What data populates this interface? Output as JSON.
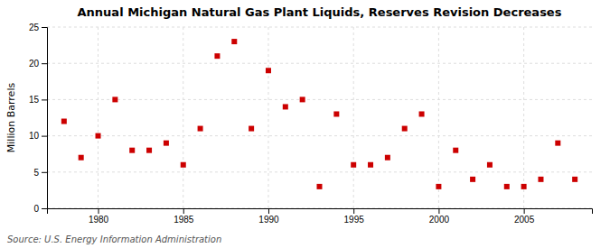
{
  "chart_data": {
    "type": "scatter",
    "title": "Annual Michigan Natural Gas Plant Liquids, Reserves Revision Decreases",
    "ylabel": "Million Barrels",
    "annotations": [
      "Source: U.S. Energy Information Administration"
    ],
    "x": [
      1978,
      1979,
      1980,
      1981,
      1982,
      1983,
      1984,
      1985,
      1986,
      1987,
      1988,
      1989,
      1990,
      1991,
      1992,
      1993,
      1994,
      1995,
      1996,
      1997,
      1998,
      1999,
      2000,
      2001,
      2002,
      2003,
      2004,
      2005,
      2006,
      2007,
      2008
    ],
    "values": [
      12,
      7,
      10,
      15,
      8,
      8,
      9,
      6,
      11,
      21,
      23,
      11,
      19,
      14,
      15,
      3,
      13,
      6,
      6,
      7,
      11,
      13,
      3,
      8,
      4,
      6,
      3,
      3,
      4,
      9,
      4
    ],
    "color": "#cc0000",
    "marker": "square",
    "xlim": [
      1977,
      2009
    ],
    "ylim": [
      0,
      25
    ],
    "xticks": [
      1980,
      1985,
      1990,
      1995,
      2000,
      2005
    ],
    "yticks": [
      0,
      5,
      10,
      15,
      20,
      25
    ],
    "grid": true
  }
}
